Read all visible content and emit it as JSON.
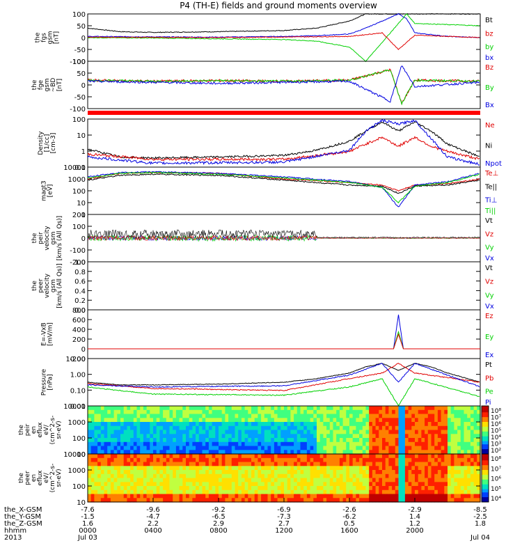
{
  "title": "P4 (TH-E) fields and ground moments overview",
  "colors": {
    "black": "#000000",
    "red": "#e00000",
    "green": "#00d000",
    "blue": "#0000e0"
  },
  "panels": [
    {
      "id": "fgs",
      "ylabel": [
        "the",
        "fgs",
        "gsm",
        "[nT]"
      ],
      "yticks": [
        "100",
        "50",
        "0",
        "-50",
        "-100"
      ],
      "ylim": [
        -100,
        100
      ],
      "legend": [
        {
          "label": "Bt",
          "color": "#000000"
        },
        {
          "label": "bz",
          "color": "#e00000"
        },
        {
          "label": "by",
          "color": "#00d000"
        },
        {
          "label": "bx",
          "color": "#0000e0"
        }
      ]
    },
    {
      "id": "fgs_gsm",
      "ylabel": [
        "the",
        "fge",
        "gsm",
        "~BD",
        "[nT]"
      ],
      "yticks": [
        "100",
        "50",
        "0",
        "-50",
        "-100"
      ],
      "ylim": [
        -125,
        100
      ],
      "legend": [
        {
          "label": "Bz",
          "color": "#e00000"
        },
        {
          "label": "By",
          "color": "#00d000"
        },
        {
          "label": "Bx",
          "color": "#0000e0"
        }
      ]
    },
    {
      "id": "density",
      "ylabel": [
        "Density",
        "[1/cc]",
        "[cm-3]"
      ],
      "yticks": [
        "100",
        "10",
        "1",
        "0.1"
      ],
      "ylim": [
        0.05,
        250
      ],
      "log": true,
      "legend": [
        {
          "label": "Ne",
          "color": "#e00000"
        },
        {
          "label": "Ni",
          "color": "#000000"
        },
        {
          "label": "Npot",
          "color": "#0000e0"
        }
      ]
    },
    {
      "id": "temperature",
      "ylabel": [
        "magt3",
        "[eV]"
      ],
      "yticks": [
        "10000",
        "1000",
        "100",
        "10",
        "1"
      ],
      "ylim": [
        1,
        10000
      ],
      "log": true,
      "legend": [
        {
          "label": "Te⊥",
          "color": "#e00000"
        },
        {
          "label": "Te||",
          "color": "#000000"
        },
        {
          "label": "Ti⊥",
          "color": "#0000e0"
        },
        {
          "label": "Ti||",
          "color": "#00d000"
        }
      ]
    },
    {
      "id": "peir_velocity",
      "ylabel": [
        "the",
        "peir",
        "velocity",
        "gsm",
        "[km/s (All Qs)]"
      ],
      "yticks": [
        "200",
        "100",
        "0",
        "-100",
        "-200"
      ],
      "ylim": [
        -200,
        200
      ],
      "legend": [
        {
          "label": "Vt",
          "color": "#000000"
        },
        {
          "label": "Vz",
          "color": "#e00000"
        },
        {
          "label": "Vy",
          "color": "#00d000"
        },
        {
          "label": "Vx",
          "color": "#0000e0"
        }
      ]
    },
    {
      "id": "peer_velocity",
      "ylabel": [
        "the",
        "peer",
        "velocity",
        "gsm",
        "[km/s (All Qs)]"
      ],
      "yticks": [
        "1.0",
        "0.8",
        "0.6",
        "0.4",
        "0.2",
        "0.0"
      ],
      "ylim": [
        0,
        1
      ],
      "legend": [
        {
          "label": "Vt",
          "color": "#000000"
        },
        {
          "label": "Vz",
          "color": "#e00000"
        },
        {
          "label": "Vy",
          "color": "#00d000"
        },
        {
          "label": "Vx",
          "color": "#0000e0"
        }
      ]
    },
    {
      "id": "efield",
      "ylabel": [
        "E=-VxB",
        "[mV/m]"
      ],
      "yticks": [
        "800",
        "600",
        "400",
        "200",
        "0",
        "-200"
      ],
      "ylim": [
        -200,
        800
      ],
      "legend": [
        {
          "label": "Ez",
          "color": "#e00000"
        },
        {
          "label": "Ey",
          "color": "#00d000"
        },
        {
          "label": "Ex",
          "color": "#0000e0"
        }
      ]
    },
    {
      "id": "pressure",
      "ylabel": [
        "Pressure",
        "[nPa]"
      ],
      "yticks": [
        "10.00",
        "1.00",
        "0.10",
        "0.01"
      ],
      "ylim": [
        0.005,
        50
      ],
      "log": true,
      "legend": [
        {
          "label": "Pt",
          "color": "#000000"
        },
        {
          "label": "Pb",
          "color": "#e00000"
        },
        {
          "label": "Pe",
          "color": "#00d000"
        },
        {
          "label": "Pi",
          "color": "#0000e0"
        }
      ]
    },
    {
      "id": "peir_eflux",
      "ylabel": [
        "the",
        "peir",
        "en",
        "eflux",
        "eV/",
        "(cm^2-s-",
        "sr-eV)"
      ],
      "yticks": [
        "10000",
        "1000",
        "100",
        "10"
      ],
      "colorbar": [
        "10⁸",
        "10⁷",
        "10⁶",
        "10⁵",
        "10⁴",
        "10³",
        "10²"
      ]
    },
    {
      "id": "peer_eflux",
      "ylabel": [
        "the",
        "peer",
        "en",
        "eflux",
        "eV/",
        "(cm^2-s-",
        "sr-eV)"
      ],
      "yticks": [
        "10000",
        "1000",
        "100",
        "10"
      ],
      "colorbar": [
        "10⁸",
        "10⁷",
        "10⁶",
        "10⁵",
        "10⁴"
      ]
    }
  ],
  "xaxis": {
    "row_labels": [
      "the_X-GSM",
      "the_Y-GSM",
      "the_Z-GSM",
      "hhmm",
      "2013"
    ],
    "columns": [
      {
        "x": [
          "-7.6",
          "-1.5",
          "1.6",
          "0000",
          "Jul 03"
        ]
      },
      {
        "x": [
          "-9.6",
          "-4.7",
          "2.2",
          "0400",
          ""
        ]
      },
      {
        "x": [
          "-9.2",
          "-6.5",
          "2.9",
          "0800",
          ""
        ]
      },
      {
        "x": [
          "-6.9",
          "-7.3",
          "2.7",
          "1200",
          ""
        ]
      },
      {
        "x": [
          "-2.6",
          "-6.2",
          "0.5",
          "1600",
          ""
        ]
      },
      {
        "x": [
          "-2.9",
          "1.4",
          "1.2",
          "2000",
          ""
        ]
      },
      {
        "x": [
          "-8.5",
          "-2.5",
          "1.8",
          "",
          "Jul 04"
        ]
      }
    ]
  },
  "chart_data": {
    "type": "line",
    "title": "P4 (TH-E) fields and ground moments overview",
    "x_unit": "hhmm",
    "x_ticks": [
      "0000",
      "0400",
      "0800",
      "1200",
      "1600",
      "2000"
    ],
    "series": [
      {
        "name": "Bt",
        "panel": "fgs",
        "x": [
          0,
          2,
          4,
          8,
          12,
          14,
          16,
          17,
          18,
          18.7
        ],
        "y": [
          40,
          25,
          22,
          25,
          30,
          40,
          70,
          100,
          100,
          100
        ]
      },
      {
        "name": "bx",
        "panel": "fgs",
        "x": [
          0,
          4,
          8,
          12,
          14,
          16,
          17,
          19,
          19.5,
          20,
          22,
          24
        ],
        "y": [
          5,
          3,
          2,
          5,
          8,
          15,
          40,
          100,
          80,
          20,
          5,
          0
        ]
      },
      {
        "name": "by",
        "panel": "fgs",
        "x": [
          0,
          4,
          8,
          12,
          14,
          16,
          17,
          19.5,
          20,
          22,
          24
        ],
        "y": [
          0,
          -2,
          -5,
          -8,
          -15,
          -40,
          -100,
          100,
          60,
          55,
          50
        ]
      },
      {
        "name": "Ni",
        "panel": "density",
        "x": [
          0,
          2,
          4,
          8,
          12,
          14,
          16,
          17,
          18,
          19,
          20,
          21,
          22,
          24
        ],
        "y": [
          1.2,
          0.3,
          0.25,
          0.3,
          0.4,
          1,
          5,
          30,
          150,
          30,
          150,
          30,
          3,
          0.3
        ]
      },
      {
        "name": "Te⊥",
        "panel": "temperature",
        "x": [
          0,
          2,
          4,
          8,
          12,
          16,
          18,
          19,
          20,
          22,
          24
        ],
        "y": [
          1000,
          3000,
          3500,
          3000,
          1000,
          500,
          300,
          100,
          300,
          400,
          1000
        ]
      },
      {
        "name": "Pt",
        "panel": "pressure",
        "x": [
          0,
          2,
          4,
          8,
          12,
          14,
          16,
          17,
          18,
          19,
          20,
          21,
          22,
          24
        ],
        "y": [
          0.5,
          0.3,
          0.3,
          0.35,
          0.5,
          1,
          3,
          10,
          20,
          5,
          20,
          10,
          3,
          0.5
        ]
      },
      {
        "name": "Ex",
        "panel": "efield",
        "x": [
          0,
          18,
          18.7,
          19,
          19.3,
          20,
          24
        ],
        "y": [
          0,
          0,
          0,
          700,
          0,
          0,
          0
        ]
      }
    ]
  }
}
